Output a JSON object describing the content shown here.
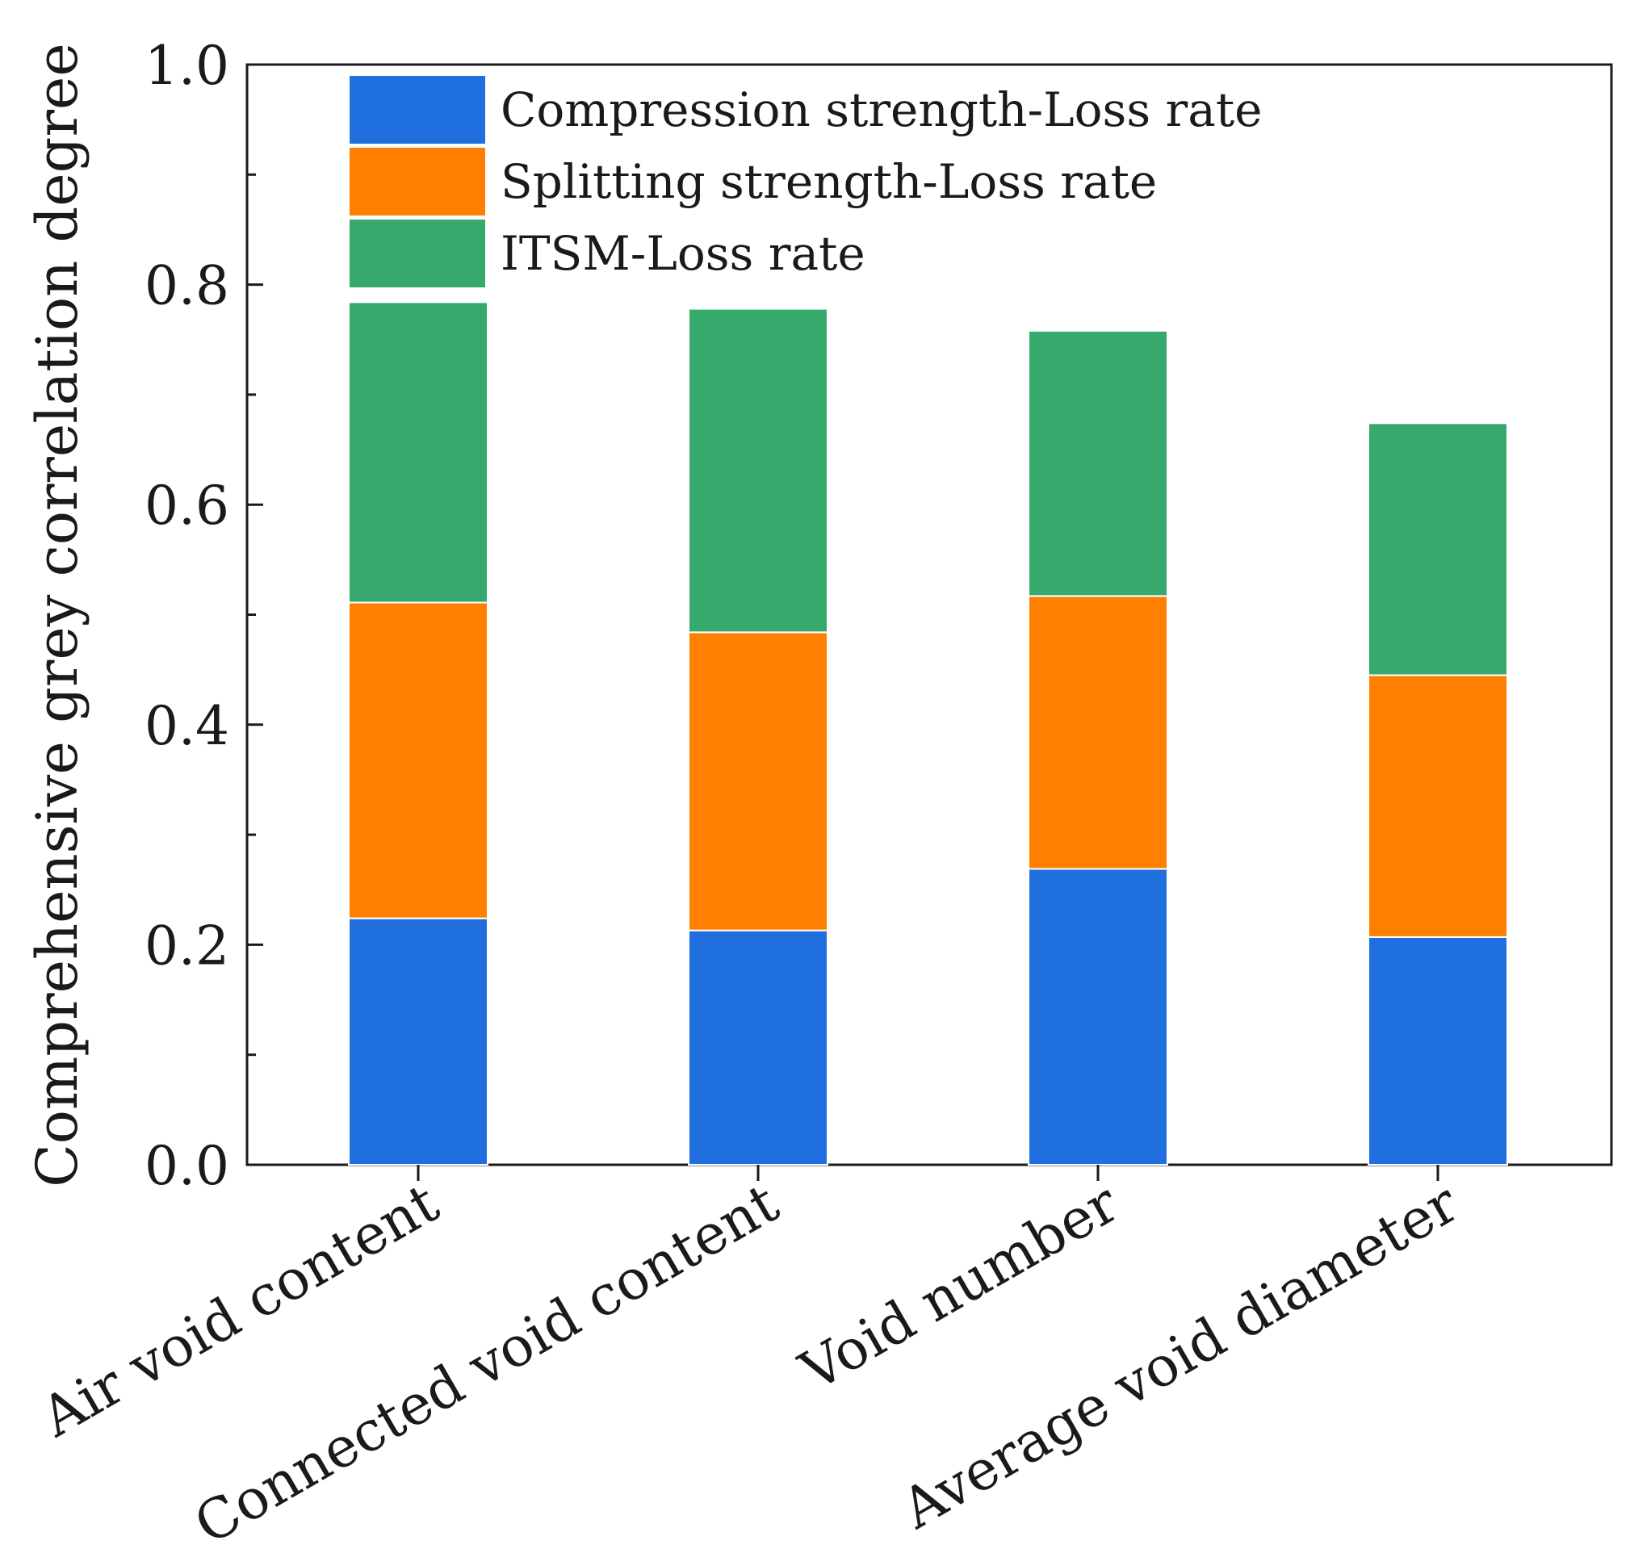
{
  "chart_data": {
    "type": "bar",
    "stacked": true,
    "title": "",
    "xlabel": "",
    "ylabel": "Comprehensive grey correlation degree",
    "ylim": [
      0,
      1.0
    ],
    "yticks": [
      "0.0",
      "0.2",
      "0.4",
      "0.6",
      "0.8",
      "1.0"
    ],
    "categories": [
      "Air void content",
      "Connected void content",
      "Void number",
      "Average void diameter"
    ],
    "series": [
      {
        "name": "Compression strength-Loss rate",
        "color": "#1f6fde",
        "values": [
          0.224,
          0.213,
          0.269,
          0.207
        ]
      },
      {
        "name": "Splitting strength-Loss rate",
        "color": "#ff7f00",
        "values": [
          0.287,
          0.271,
          0.248,
          0.238
        ]
      },
      {
        "name": "ITSM-Loss rate",
        "color": "#36a96c",
        "values": [
          0.273,
          0.294,
          0.241,
          0.229
        ]
      }
    ],
    "legend_position": "top-left",
    "grid": false
  }
}
